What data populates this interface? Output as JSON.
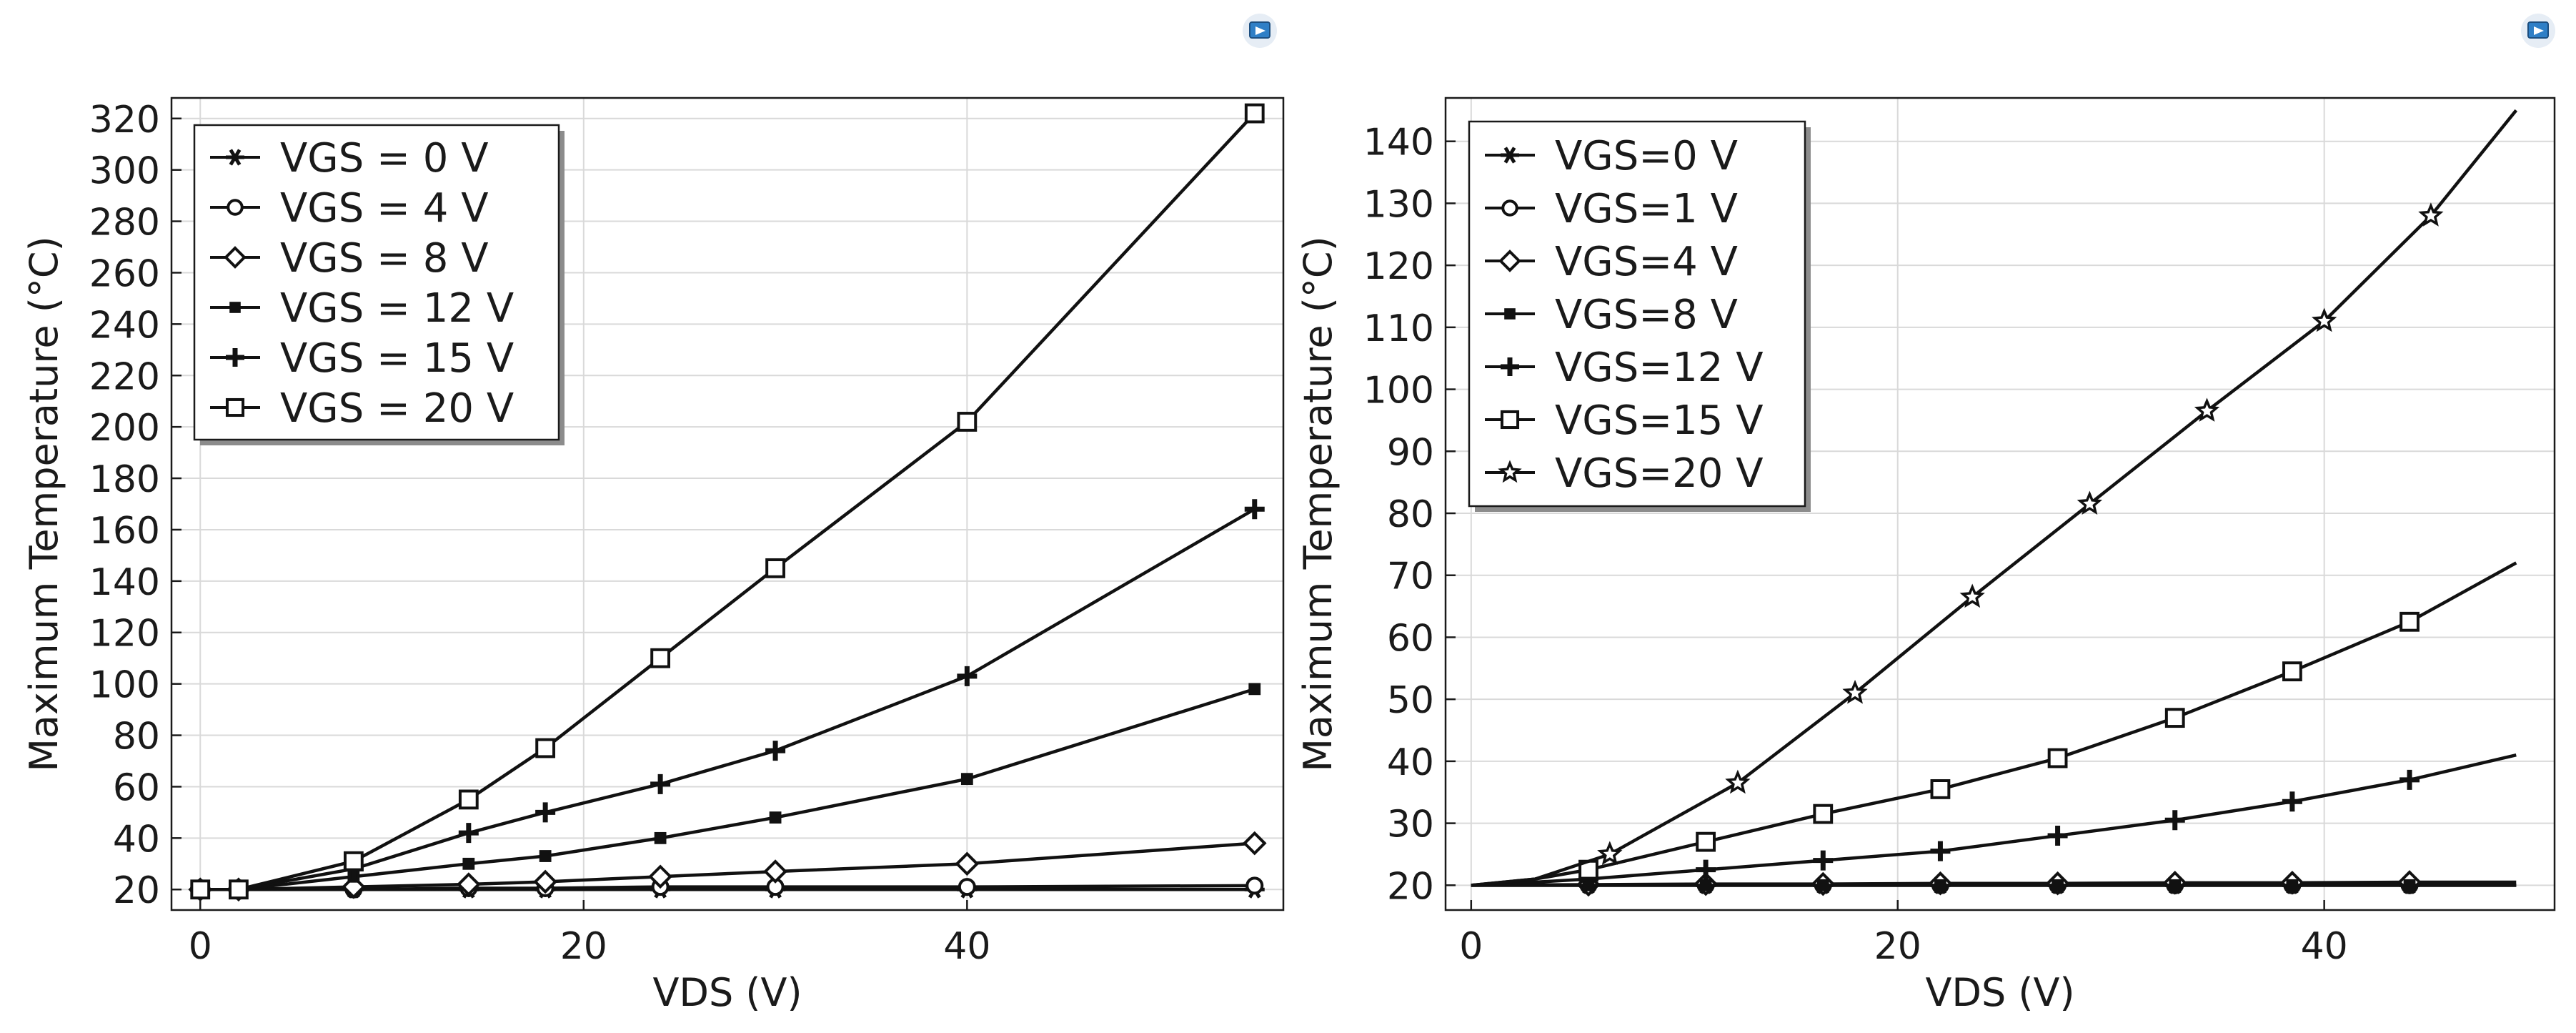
{
  "chart_data": [
    {
      "type": "line",
      "xlabel": "VDS (V)",
      "ylabel": "Maximum Temperature (°C)",
      "xlim": [
        -1.5,
        56.5
      ],
      "ylim": [
        12,
        328
      ],
      "xticks": [
        0,
        20,
        40
      ],
      "yticks": [
        20,
        40,
        60,
        80,
        100,
        120,
        140,
        160,
        180,
        200,
        220,
        240,
        260,
        280,
        300,
        320
      ],
      "xtick_labels": [
        "0",
        "20",
        "40"
      ],
      "ytick_labels": [
        "20",
        "40",
        "60",
        "80",
        "100",
        "120",
        "140",
        "160",
        "180",
        "200",
        "220",
        "240",
        "260",
        "280",
        "300",
        "320"
      ],
      "grid": true,
      "legend_position": "top-left",
      "series": [
        {
          "name": "VGS = 0 V",
          "marker": "asterisk",
          "x": [
            0,
            2,
            8,
            14,
            18,
            24,
            30,
            40,
            55
          ],
          "y": [
            20,
            20,
            20,
            20,
            20,
            20,
            20,
            20,
            20
          ]
        },
        {
          "name": "VGS = 4 V",
          "marker": "circle",
          "x": [
            0,
            2,
            8,
            14,
            18,
            24,
            30,
            40,
            55
          ],
          "y": [
            20,
            20,
            20,
            20.5,
            20.5,
            21,
            21,
            21,
            21.5
          ]
        },
        {
          "name": "VGS = 8 V",
          "marker": "diamond",
          "x": [
            0,
            2,
            8,
            14,
            18,
            24,
            30,
            40,
            55
          ],
          "y": [
            20,
            20,
            21,
            22,
            23,
            25,
            27,
            30,
            38
          ]
        },
        {
          "name": "VGS = 12 V",
          "marker": "filled-square",
          "x": [
            0,
            2,
            8,
            14,
            18,
            24,
            30,
            40,
            55
          ],
          "y": [
            20,
            20,
            25,
            30,
            33,
            40,
            48,
            63,
            98
          ]
        },
        {
          "name": "VGS = 15 V",
          "marker": "plus",
          "x": [
            0,
            2,
            8,
            14,
            18,
            24,
            30,
            40,
            55
          ],
          "y": [
            20,
            20,
            28,
            42,
            50,
            61,
            74,
            103,
            168
          ]
        },
        {
          "name": "VGS = 20 V",
          "marker": "square",
          "x": [
            0,
            2,
            8,
            14,
            18,
            24,
            30,
            40,
            55
          ],
          "y": [
            20,
            20,
            31,
            55,
            75,
            110,
            145,
            202,
            322
          ]
        }
      ]
    },
    {
      "type": "line",
      "xlabel": "VDS (V)",
      "ylabel": "Maximum Temperature (°C)",
      "xlim": [
        -1.2,
        50.8
      ],
      "ylim": [
        16,
        147
      ],
      "xticks": [
        0,
        20,
        40
      ],
      "yticks": [
        20,
        30,
        40,
        50,
        60,
        70,
        80,
        90,
        100,
        110,
        120,
        130,
        140
      ],
      "xtick_labels": [
        "0",
        "20",
        "40"
      ],
      "ytick_labels": [
        "20",
        "30",
        "40",
        "50",
        "60",
        "70",
        "80",
        "90",
        "100",
        "110",
        "120",
        "130",
        "140"
      ],
      "grid": true,
      "legend_position": "top-left",
      "series": [
        {
          "name": "VGS=0 V",
          "marker": "asterisk",
          "x": [
            0,
            5.5,
            11,
            16.5,
            22,
            27.5,
            33,
            38.5,
            44,
            49
          ],
          "y": [
            20,
            20,
            20,
            20,
            20,
            20,
            20,
            20,
            20,
            20
          ],
          "mx": [
            5.5,
            11,
            16.5,
            22,
            27.5,
            33,
            38.5,
            44
          ]
        },
        {
          "name": "VGS=1 V",
          "marker": "circle",
          "x": [
            0,
            5.5,
            11,
            16.5,
            22,
            27.5,
            33,
            38.5,
            44,
            49
          ],
          "y": [
            20,
            20,
            20,
            20,
            20,
            20,
            20,
            20,
            20,
            20
          ],
          "mx": [
            5.5,
            11,
            16.5,
            22,
            27.5,
            33,
            38.5,
            44
          ]
        },
        {
          "name": "VGS=4 V",
          "marker": "diamond",
          "x": [
            0,
            5.5,
            11,
            16.5,
            22,
            27.5,
            33,
            38.5,
            44,
            49
          ],
          "y": [
            20,
            20.1,
            20.2,
            20.2,
            20.3,
            20.3,
            20.4,
            20.4,
            20.5,
            20.5
          ],
          "mx": [
            5.5,
            11,
            16.5,
            22,
            27.5,
            33,
            38.5,
            44
          ]
        },
        {
          "name": "VGS=8 V",
          "marker": "filled-square",
          "x": [
            0,
            5.5,
            11,
            16.5,
            22,
            27.5,
            33,
            38.5,
            44,
            49
          ],
          "y": [
            20,
            20,
            20,
            20,
            20,
            20,
            20,
            20,
            20,
            20
          ],
          "mx": [
            5.5,
            11,
            16.5,
            22,
            27.5,
            33,
            38.5,
            44
          ]
        },
        {
          "name": "VGS=12 V",
          "marker": "plus",
          "x": [
            0,
            3,
            5.5,
            11,
            16.5,
            22,
            27.5,
            33,
            38.5,
            44,
            49
          ],
          "y": [
            20,
            20.5,
            21,
            22.5,
            24,
            25.5,
            28,
            30.5,
            33.5,
            37,
            41
          ],
          "mx": [
            5.5,
            11,
            16.5,
            22,
            27.5,
            33,
            38.5,
            44
          ]
        },
        {
          "name": "VGS=15 V",
          "marker": "square",
          "x": [
            0,
            3,
            5.5,
            11,
            16.5,
            22,
            27.5,
            33,
            38.5,
            44,
            49
          ],
          "y": [
            20,
            21,
            22.5,
            27,
            31.5,
            35.5,
            40.5,
            47,
            54.5,
            62.5,
            72
          ],
          "mx": [
            5.5,
            11,
            16.5,
            22,
            27.5,
            33,
            38.5,
            44
          ]
        },
        {
          "name": "VGS=20 V",
          "marker": "star",
          "x": [
            0,
            3,
            6.5,
            12.5,
            18,
            23.5,
            29,
            34.5,
            40,
            45,
            49
          ],
          "y": [
            20,
            21,
            25,
            36.5,
            51,
            66.5,
            81.5,
            96.5,
            111,
            128,
            145
          ],
          "mx": [
            6.5,
            12.5,
            18,
            23.5,
            29,
            34.5,
            40,
            45
          ]
        }
      ]
    }
  ]
}
